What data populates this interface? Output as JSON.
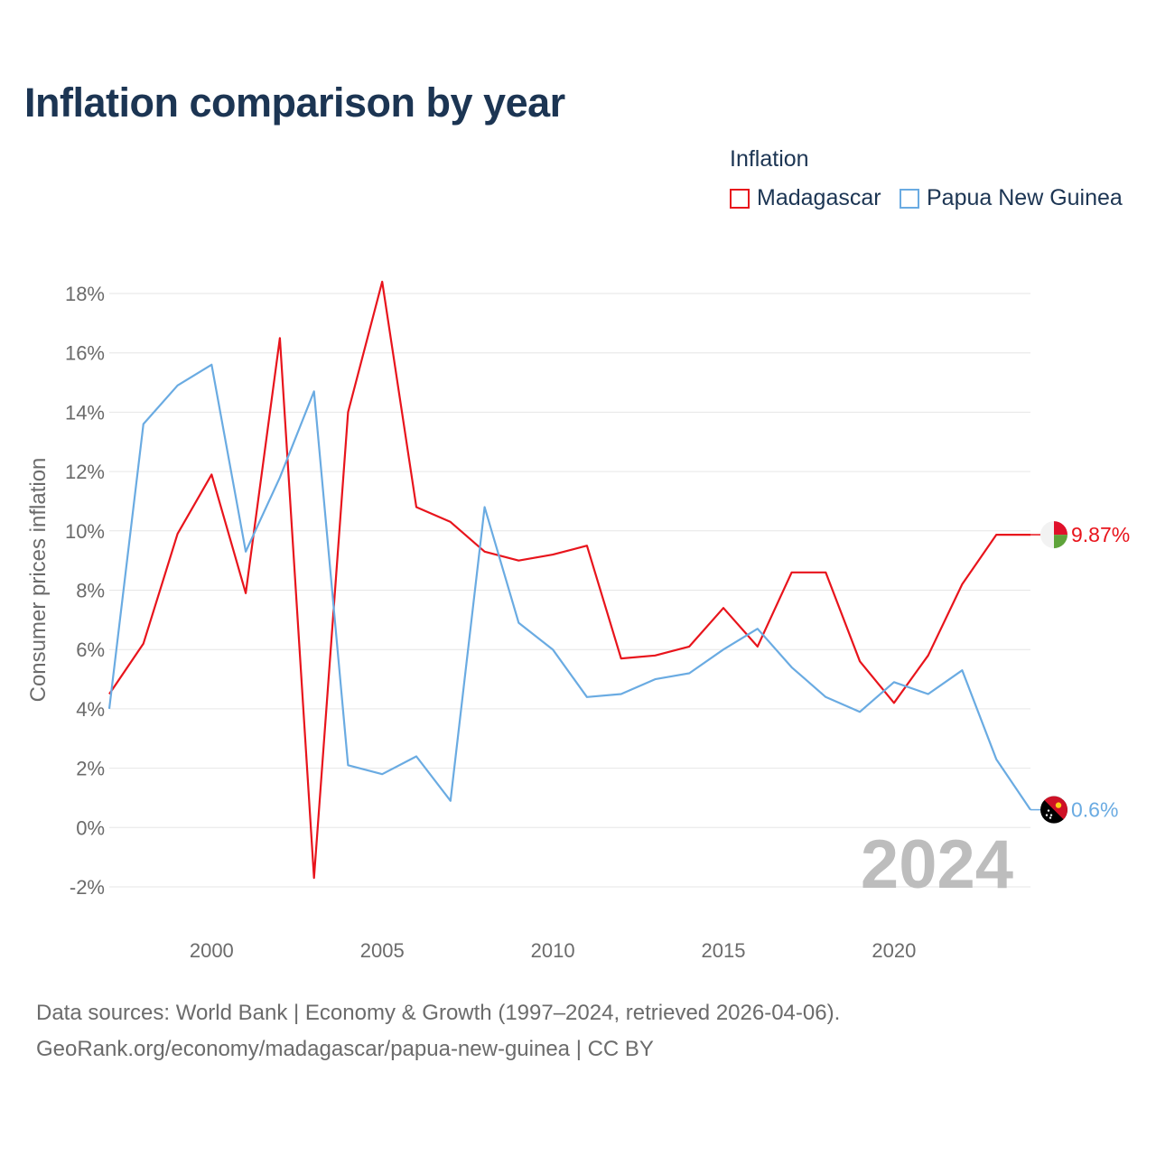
{
  "title": "Inflation comparison by year",
  "legend": {
    "title": "Inflation",
    "items": [
      {
        "label": "Madagascar",
        "color": "#e8141c"
      },
      {
        "label": "Papua New Guinea",
        "color": "#6aabe2"
      }
    ]
  },
  "sources": {
    "line1": "Data sources: World Bank | Economy & Growth (1997–2024, retrieved 2026-04-06).",
    "line2": "GeoRank.org/economy/madagascar/papua-new-guinea | CC BY"
  },
  "chart_data": {
    "type": "line",
    "title": "Inflation comparison by year",
    "xlabel": "",
    "ylabel": "Consumer prices inflation",
    "x": [
      1997,
      1998,
      1999,
      2000,
      2001,
      2002,
      2003,
      2004,
      2005,
      2006,
      2007,
      2008,
      2009,
      2010,
      2011,
      2012,
      2013,
      2014,
      2015,
      2016,
      2017,
      2018,
      2019,
      2020,
      2021,
      2022,
      2023,
      2024
    ],
    "xlim": [
      1997,
      2024
    ],
    "ylim": [
      -2.8,
      19
    ],
    "x_ticks": [
      2000,
      2005,
      2010,
      2015,
      2020
    ],
    "y_ticks": [
      -2,
      0,
      2,
      4,
      6,
      8,
      10,
      12,
      14,
      16,
      18
    ],
    "y_tick_labels": [
      "-2%",
      "0%",
      "2%",
      "4%",
      "6%",
      "8%",
      "10%",
      "12%",
      "14%",
      "16%",
      "18%"
    ],
    "grid": true,
    "year_watermark": "2024",
    "series": [
      {
        "name": "Madagascar",
        "color": "#e8141c",
        "values": [
          4.5,
          6.2,
          9.9,
          11.9,
          7.9,
          16.5,
          -1.7,
          14.0,
          18.4,
          10.8,
          10.3,
          9.3,
          9.0,
          9.2,
          9.5,
          5.7,
          5.8,
          6.1,
          7.4,
          6.1,
          8.6,
          8.6,
          5.6,
          4.2,
          5.8,
          8.2,
          9.87,
          9.87
        ],
        "end_label": "9.87%"
      },
      {
        "name": "Papua New Guinea",
        "color": "#6aabe2",
        "values": [
          4.0,
          13.6,
          14.9,
          15.6,
          9.3,
          11.8,
          14.7,
          2.1,
          1.8,
          2.4,
          0.9,
          10.8,
          6.9,
          6.0,
          4.4,
          4.5,
          5.0,
          5.2,
          6.0,
          6.7,
          5.4,
          4.4,
          3.9,
          4.9,
          4.5,
          5.3,
          2.3,
          0.6
        ],
        "end_label": "0.6%"
      }
    ]
  }
}
